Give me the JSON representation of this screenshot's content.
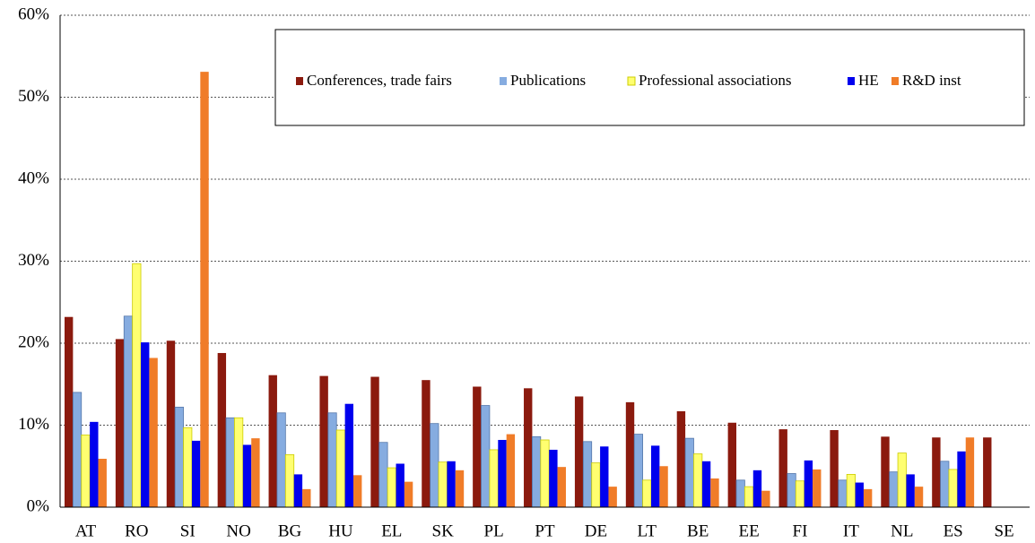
{
  "chart_data": {
    "type": "bar",
    "categories": [
      "AT",
      "RO",
      "SI",
      "NO",
      "BG",
      "HU",
      "EL",
      "SK",
      "PL",
      "PT",
      "DE",
      "LT",
      "BE",
      "EE",
      "FI",
      "IT",
      "NL",
      "ES",
      "SE"
    ],
    "series": [
      {
        "name": "Conferences, trade fairs",
        "color": "#8b1a0e",
        "values": [
          23.2,
          20.5,
          20.3,
          18.8,
          16.1,
          16.0,
          15.9,
          15.5,
          14.7,
          14.5,
          13.5,
          12.8,
          11.7,
          10.3,
          9.5,
          9.4,
          8.6,
          8.5,
          8.5
        ]
      },
      {
        "name": "Publications",
        "color": "#86ace0",
        "values": [
          14.0,
          23.3,
          12.2,
          10.9,
          11.5,
          11.5,
          7.9,
          10.2,
          12.4,
          8.6,
          8.0,
          8.9,
          8.4,
          3.3,
          4.1,
          3.3,
          4.3,
          5.6,
          null
        ]
      },
      {
        "name": "Professional associations",
        "color": "#ffff70",
        "values": [
          8.8,
          29.7,
          9.7,
          10.9,
          6.4,
          9.4,
          4.8,
          5.5,
          7.0,
          8.2,
          5.4,
          3.3,
          6.5,
          2.5,
          3.2,
          4.0,
          6.6,
          4.6,
          null
        ]
      },
      {
        "name": "HE",
        "color": "#0000ee",
        "values": [
          10.4,
          20.1,
          8.1,
          7.6,
          4.0,
          12.6,
          5.3,
          5.6,
          8.2,
          7.0,
          7.4,
          7.5,
          5.6,
          4.5,
          5.7,
          3.0,
          4.0,
          6.8,
          null
        ]
      },
      {
        "name": "R&D inst",
        "color": "#f07c28",
        "values": [
          5.9,
          18.2,
          53.1,
          8.4,
          2.2,
          3.9,
          3.1,
          4.5,
          8.9,
          4.9,
          2.5,
          5.0,
          3.5,
          2.0,
          4.6,
          2.2,
          2.5,
          8.5,
          null
        ]
      }
    ],
    "ylim": [
      0,
      60
    ],
    "yticks": [
      {
        "value": 0,
        "label": "0%"
      },
      {
        "value": 10,
        "label": "10%"
      },
      {
        "value": 20,
        "label": "20%"
      },
      {
        "value": 30,
        "label": "30%"
      },
      {
        "value": 40,
        "label": "40%"
      },
      {
        "value": 50,
        "label": "50%"
      },
      {
        "value": 60,
        "label": "60%"
      }
    ],
    "grid": true
  }
}
